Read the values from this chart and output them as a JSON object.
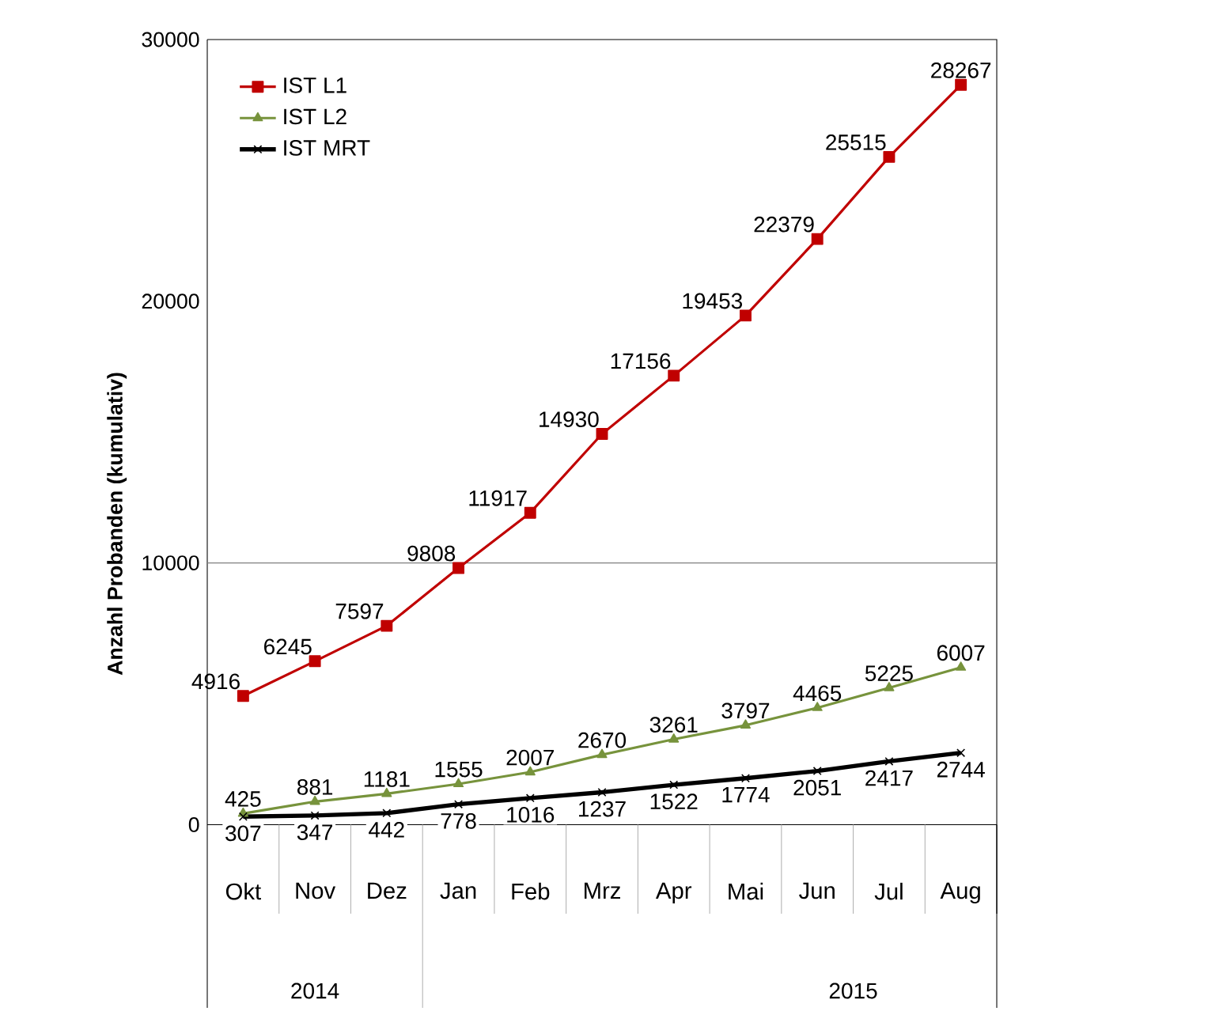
{
  "chart_data": {
    "type": "line",
    "ylabel": "Anzahl Probanden (kumulativ)",
    "categories": [
      "Okt",
      "Nov",
      "Dez",
      "Jan",
      "Feb",
      "Mrz",
      "Apr",
      "Mai",
      "Jun",
      "Jul",
      "Aug"
    ],
    "series": [
      {
        "name": "IST L1",
        "color": "#c00000",
        "marker": "square",
        "values": [
          4916,
          6245,
          7597,
          9808,
          11917,
          14930,
          17156,
          19453,
          22379,
          25515,
          28267
        ]
      },
      {
        "name": "IST L2",
        "color": "#77933c",
        "marker": "triangle",
        "values": [
          425,
          881,
          1181,
          1555,
          2007,
          2670,
          3261,
          3797,
          4465,
          5225,
          6007
        ]
      },
      {
        "name": "IST MRT",
        "color": "#000000",
        "marker": "cross",
        "values": [
          307,
          347,
          442,
          778,
          1016,
          1237,
          1522,
          1774,
          2051,
          2417,
          2744
        ]
      }
    ],
    "ylim": [
      -7000,
      30000
    ],
    "yticks": [
      0,
      10000,
      20000,
      30000
    ],
    "ref_lines": [
      {
        "axis": "y",
        "value": 10000,
        "color": "#808080"
      }
    ],
    "annotations": [
      "2014",
      "2015"
    ],
    "data_labels": true,
    "legend": "top left",
    "grid": false
  }
}
